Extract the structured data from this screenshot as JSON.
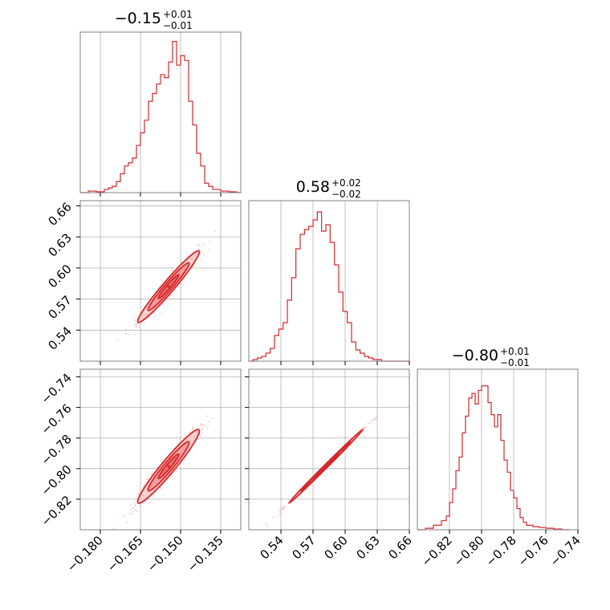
{
  "chart_data": [
    {
      "type": "histogram",
      "parameter_index": 0,
      "title": {
        "median": "−0.15",
        "plus": "+0.01",
        "minus": "−0.01"
      },
      "xlim": [
        -0.1875,
        -0.1275
      ],
      "x_ticks": [
        -0.18,
        -0.165,
        -0.15,
        -0.135
      ],
      "x_tick_labels": [
        "−0.180",
        "−0.165",
        "−0.150",
        "−0.135"
      ],
      "grid": true,
      "color": "#d62728",
      "step_x": [
        -0.1875,
        -0.1845,
        -0.1815,
        -0.1785,
        -0.177,
        -0.1755,
        -0.174,
        -0.1725,
        -0.171,
        -0.1695,
        -0.168,
        -0.1665,
        -0.165,
        -0.1635,
        -0.162,
        -0.1605,
        -0.159,
        -0.1575,
        -0.156,
        -0.1545,
        -0.153,
        -0.1515,
        -0.15,
        -0.1485,
        -0.147,
        -0.1455,
        -0.144,
        -0.1425,
        -0.141,
        -0.1395,
        -0.138,
        -0.135,
        -0.132,
        -0.129,
        -0.1275
      ],
      "step_y": [
        0.0,
        0.01,
        0.005,
        0.02,
        0.03,
        0.04,
        0.07,
        0.12,
        0.17,
        0.19,
        0.22,
        0.3,
        0.38,
        0.46,
        0.58,
        0.63,
        0.69,
        0.75,
        0.73,
        0.83,
        0.96,
        0.81,
        0.87,
        0.84,
        0.58,
        0.43,
        0.25,
        0.17,
        0.06,
        0.04,
        0.02,
        0.01,
        0.005,
        0.0,
        0.0
      ],
      "ymax": 1.02
    },
    {
      "type": "histogram",
      "parameter_index": 1,
      "title": {
        "median": "0.58",
        "plus": "+0.02",
        "minus": "−0.02"
      },
      "xlim": [
        0.51,
        0.66
      ],
      "x_ticks": [
        0.54,
        0.57,
        0.6,
        0.63,
        0.66
      ],
      "x_tick_labels": [
        "0.54",
        "0.57",
        "0.60",
        "0.63",
        "0.66"
      ],
      "grid": true,
      "color": "#d62728",
      "step_x": [
        0.51,
        0.514,
        0.518,
        0.522,
        0.526,
        0.53,
        0.534,
        0.538,
        0.542,
        0.546,
        0.55,
        0.554,
        0.558,
        0.562,
        0.566,
        0.57,
        0.574,
        0.578,
        0.582,
        0.586,
        0.59,
        0.594,
        0.598,
        0.602,
        0.606,
        0.61,
        0.614,
        0.618,
        0.622,
        0.626,
        0.63,
        0.634,
        0.638,
        0.642,
        0.646,
        0.65,
        0.654,
        0.658,
        0.66
      ],
      "step_y": [
        0.0,
        0.01,
        0.02,
        0.03,
        0.05,
        0.08,
        0.16,
        0.2,
        0.24,
        0.38,
        0.52,
        0.7,
        0.79,
        0.82,
        0.84,
        0.88,
        0.93,
        0.81,
        0.85,
        0.74,
        0.6,
        0.43,
        0.31,
        0.24,
        0.12,
        0.07,
        0.05,
        0.03,
        0.02,
        0.01,
        0.01,
        0.0,
        0.0,
        0.0,
        0.0,
        0.0,
        0.0,
        0.0,
        0.0
      ],
      "ymax": 1.0
    },
    {
      "type": "histogram",
      "parameter_index": 2,
      "title": {
        "median": "−0.80",
        "plus": "+0.01",
        "minus": "−0.01"
      },
      "xlim": [
        -0.84,
        -0.74
      ],
      "x_ticks": [
        -0.82,
        -0.8,
        -0.78,
        -0.76,
        -0.74
      ],
      "x_tick_labels": [
        "−0.82",
        "−0.80",
        "−0.78",
        "−0.76",
        "−0.74"
      ],
      "grid": true,
      "color": "#d62728",
      "step_x": [
        -0.84,
        -0.835,
        -0.83,
        -0.825,
        -0.822,
        -0.82,
        -0.818,
        -0.816,
        -0.814,
        -0.812,
        -0.81,
        -0.808,
        -0.806,
        -0.804,
        -0.802,
        -0.8,
        -0.798,
        -0.796,
        -0.794,
        -0.792,
        -0.79,
        -0.788,
        -0.786,
        -0.784,
        -0.782,
        -0.78,
        -0.778,
        -0.776,
        -0.774,
        -0.772,
        -0.768,
        -0.764,
        -0.76,
        -0.755,
        -0.75,
        -0.745
      ],
      "step_y": [
        0.0,
        0.01,
        0.03,
        0.06,
        0.09,
        0.18,
        0.27,
        0.39,
        0.48,
        0.64,
        0.75,
        0.87,
        0.9,
        0.83,
        0.92,
        0.95,
        0.95,
        0.84,
        0.76,
        0.68,
        0.76,
        0.59,
        0.46,
        0.38,
        0.26,
        0.21,
        0.14,
        0.08,
        0.05,
        0.03,
        0.02,
        0.015,
        0.01,
        0.005,
        0.0,
        0.0
      ],
      "ymax": 1.06
    },
    {
      "type": "scatter",
      "panel": "param1-vs-param0",
      "x_param": 0,
      "y_param": 1,
      "xlim": [
        -0.1875,
        -0.1275
      ],
      "ylim": [
        0.51,
        0.665
      ],
      "x_ticks": [
        -0.18,
        -0.165,
        -0.15,
        -0.135
      ],
      "y_ticks": [
        0.54,
        0.57,
        0.6,
        0.63,
        0.66
      ],
      "y_tick_labels": [
        "0.54",
        "0.57",
        "0.60",
        "0.63",
        "0.66"
      ],
      "grid": true,
      "color": "#d62728",
      "center": [
        -0.1545,
        0.582
      ],
      "sigma": [
        0.0055,
        0.0165
      ],
      "correlation": 0.97,
      "contour_levels": [
        0.7,
        1.4,
        2.1
      ]
    },
    {
      "type": "scatter",
      "panel": "param2-vs-param0",
      "x_param": 0,
      "y_param": 2,
      "xlim": [
        -0.1875,
        -0.1275
      ],
      "ylim": [
        -0.84,
        -0.735
      ],
      "x_ticks": [
        -0.18,
        -0.165,
        -0.15,
        -0.135
      ],
      "y_ticks": [
        -0.82,
        -0.8,
        -0.78,
        -0.76,
        -0.74
      ],
      "y_tick_labels": [
        "−0.82",
        "−0.80",
        "−0.78",
        "−0.76",
        "−0.74"
      ],
      "grid": true,
      "color": "#d62728",
      "center": [
        -0.1545,
        -0.7985
      ],
      "sigma": [
        0.0055,
        0.0115
      ],
      "correlation": 0.96,
      "contour_levels": [
        0.7,
        1.4,
        2.1
      ]
    },
    {
      "type": "scatter",
      "panel": "param2-vs-param1",
      "x_param": 1,
      "y_param": 2,
      "xlim": [
        0.51,
        0.66
      ],
      "ylim": [
        -0.84,
        -0.735
      ],
      "x_ticks": [
        0.54,
        0.57,
        0.6,
        0.63,
        0.66
      ],
      "y_ticks": [
        -0.82,
        -0.8,
        -0.78,
        -0.76,
        -0.74
      ],
      "grid": true,
      "color": "#d62728",
      "center": [
        0.582,
        -0.7985
      ],
      "sigma": [
        0.0165,
        0.0115
      ],
      "correlation": 0.998,
      "contour_levels": [
        0.7,
        1.4,
        2.1
      ]
    }
  ]
}
